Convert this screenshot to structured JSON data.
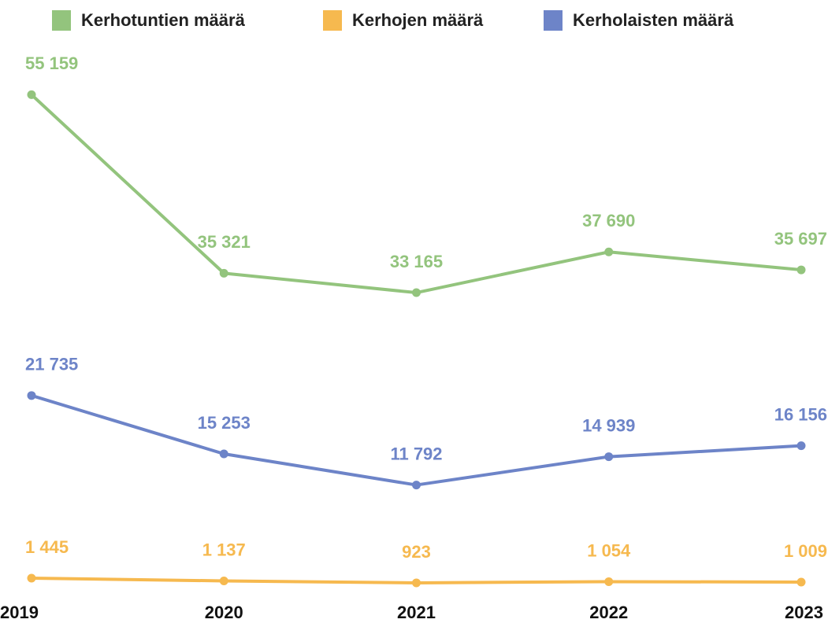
{
  "chart_data": {
    "type": "line",
    "categories": [
      "2019",
      "2020",
      "2021",
      "2022",
      "2023"
    ],
    "series": [
      {
        "name": "Kerhotuntien määrä",
        "color": "#93c47d",
        "values": [
          55159,
          35321,
          33165,
          37690,
          35697
        ],
        "value_labels": [
          "55 159",
          "35 321",
          "33 165",
          "37 690",
          "35 697"
        ]
      },
      {
        "name": "Kerhojen määrä",
        "color": "#f6b94f",
        "values": [
          1445,
          1137,
          923,
          1054,
          1009
        ],
        "value_labels": [
          "1 445",
          "1 137",
          "923",
          "1 054",
          "1 009"
        ]
      },
      {
        "name": "Kerholaisten määrä",
        "color": "#6d84c8",
        "values": [
          21735,
          15253,
          11792,
          14939,
          16156
        ],
        "value_labels": [
          "21 735",
          "15 253",
          "11 792",
          "14 939",
          "16 156"
        ]
      }
    ],
    "ylim": [
      0,
      60000
    ],
    "grid": false
  }
}
